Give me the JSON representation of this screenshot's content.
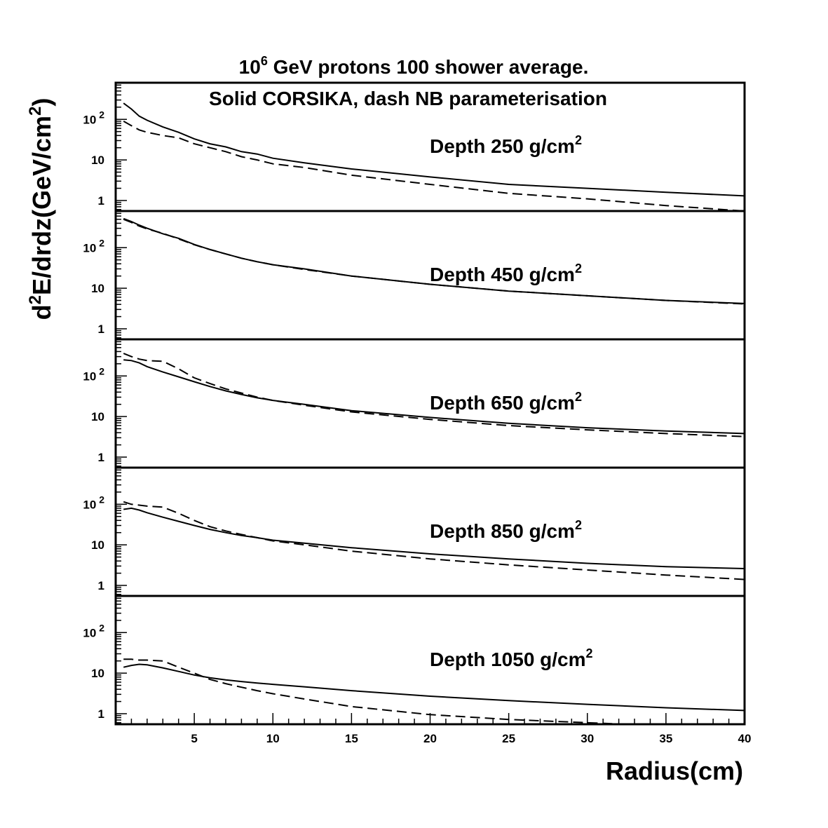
{
  "figure": {
    "title_base": "10",
    "title_exp": "6",
    "title_rest": " GeV protons 100 shower average.",
    "subtitle": "Solid CORSIKA, dash NB parameterisation",
    "ylabel_d": "d",
    "ylabel_sup1": "2",
    "ylabel_mid": "E/drdz(GeV/cm",
    "ylabel_sup2": "2",
    "ylabel_close": ")",
    "xlabel": "Radius(cm)"
  },
  "chart_data": {
    "type": "line",
    "xlabel": "Radius(cm)",
    "ylabel": "d2E/drdz(GeV/cm2)",
    "xlim": [
      0,
      40
    ],
    "xticks": [
      5,
      10,
      15,
      20,
      25,
      30,
      35,
      40
    ],
    "yscale": "log",
    "ylim": [
      0.55,
      800
    ],
    "ytick_labels": [
      "1",
      "10",
      "10 2"
    ],
    "legend": "Solid CORSIKA, dash NB parameterisation",
    "panels": [
      {
        "label_text": "Depth 250 g/cm",
        "label_sup": "2",
        "series": [
          {
            "style": "solid",
            "x": [
              0.5,
              1,
              1.5,
              2,
              3,
              4,
              5,
              6,
              7,
              8,
              9,
              10,
              12,
              15,
              20,
              25,
              30,
              35,
              40
            ],
            "y": [
              250,
              180,
              120,
              95,
              65,
              48,
              33,
              25,
              21,
              16,
              14,
              11,
              8.5,
              6,
              3.8,
              2.5,
              2,
              1.6,
              1.3
            ]
          },
          {
            "style": "dashed",
            "x": [
              0.5,
              1,
              1.5,
              2,
              3,
              4,
              5,
              6,
              7,
              8,
              9,
              10,
              12,
              15,
              20,
              25,
              30,
              35,
              40
            ],
            "y": [
              90,
              70,
              55,
              48,
              40,
              35,
              25,
              20,
              16,
              12,
              10,
              8,
              6.5,
              4.2,
              2.5,
              1.5,
              1.1,
              0.75,
              0.55
            ]
          }
        ]
      },
      {
        "label_text": "Depth 450 g/cm",
        "label_sup": "2",
        "series": [
          {
            "style": "solid",
            "x": [
              0.5,
              1,
              1.5,
              2,
              3,
              4,
              5,
              6,
              7,
              8,
              9,
              10,
              12,
              15,
              20,
              25,
              30,
              35,
              40
            ],
            "y": [
              520,
              440,
              360,
              300,
              220,
              170,
              120,
              90,
              70,
              55,
              45,
              38,
              30,
              20,
              12.5,
              8.5,
              6.5,
              5,
              4.2
            ]
          },
          {
            "style": "dashed",
            "x": [
              0.5,
              1,
              1.5,
              2,
              3,
              4,
              5,
              6,
              7,
              8,
              9,
              10,
              12,
              15,
              20,
              25,
              30,
              35,
              40
            ],
            "y": [
              500,
              420,
              340,
              290,
              225,
              165,
              118,
              90,
              70,
              55,
              45,
              38,
              29,
              20,
              12.5,
              8.5,
              6.5,
              5,
              4.1
            ]
          }
        ]
      },
      {
        "label_text": "Depth 650 g/cm",
        "label_sup": "2",
        "series": [
          {
            "style": "solid",
            "x": [
              0.5,
              1,
              1.5,
              2,
              3,
              4,
              5,
              6,
              7,
              8,
              9,
              10,
              12,
              15,
              20,
              25,
              30,
              35,
              40
            ],
            "y": [
              250,
              240,
              210,
              170,
              125,
              95,
              72,
              55,
              43,
              35,
              29,
              25,
              20,
              14,
              9.5,
              6.8,
              5.3,
              4.4,
              3.8
            ]
          },
          {
            "style": "dashed",
            "x": [
              0.5,
              1,
              1.5,
              2,
              3,
              4,
              5,
              6,
              7,
              8,
              9,
              10,
              12,
              15,
              20,
              25,
              30,
              35,
              40
            ],
            "y": [
              360,
              300,
              260,
              240,
              230,
              150,
              90,
              65,
              48,
              38,
              30,
              25,
              19,
              13,
              8.5,
              6,
              4.7,
              3.8,
              3.2
            ]
          }
        ]
      },
      {
        "label_text": "Depth 850 g/cm",
        "label_sup": "2",
        "series": [
          {
            "style": "solid",
            "x": [
              0.5,
              1,
              1.5,
              2,
              3,
              4,
              5,
              6,
              7,
              8,
              9,
              10,
              12,
              15,
              20,
              25,
              30,
              35,
              40
            ],
            "y": [
              75,
              80,
              72,
              62,
              48,
              38,
              30,
              24,
              20,
              17,
              15,
              13,
              11,
              8.5,
              6,
              4.5,
              3.5,
              2.9,
              2.6
            ]
          },
          {
            "style": "dashed",
            "x": [
              0.5,
              1,
              1.5,
              2,
              3,
              4,
              5,
              6,
              7,
              8,
              9,
              10,
              12,
              15,
              20,
              25,
              30,
              35,
              40
            ],
            "y": [
              115,
              100,
              95,
              90,
              85,
              60,
              40,
              28,
              22,
              18,
              15,
              12.5,
              10,
              7,
              4.5,
              3.2,
              2.4,
              1.8,
              1.4
            ]
          }
        ]
      },
      {
        "label_text": "Depth 1050 g/cm",
        "label_sup": "2",
        "series": [
          {
            "style": "solid",
            "x": [
              0.5,
              1,
              1.5,
              2,
              3,
              4,
              5,
              6,
              7,
              8,
              9,
              10,
              12,
              15,
              20,
              25,
              30,
              35,
              40
            ],
            "y": [
              14,
              15.5,
              16.5,
              16,
              13.5,
              11,
              9,
              7.7,
              6.8,
              6.2,
              5.7,
              5.3,
              4.6,
              3.7,
              2.7,
              2.1,
              1.7,
              1.4,
              1.2
            ]
          },
          {
            "style": "dashed",
            "x": [
              0.5,
              1,
              1.5,
              2,
              3,
              4,
              5,
              6,
              7,
              8,
              9,
              10,
              12,
              15,
              20,
              25,
              30,
              35,
              40
            ],
            "y": [
              22,
              22,
              21,
              21,
              20,
              14,
              10,
              7,
              5.5,
              4.5,
              3.7,
              3.1,
              2.3,
              1.5,
              0.95,
              0.72,
              0.6,
              0.5,
              0.45
            ]
          }
        ]
      }
    ]
  }
}
